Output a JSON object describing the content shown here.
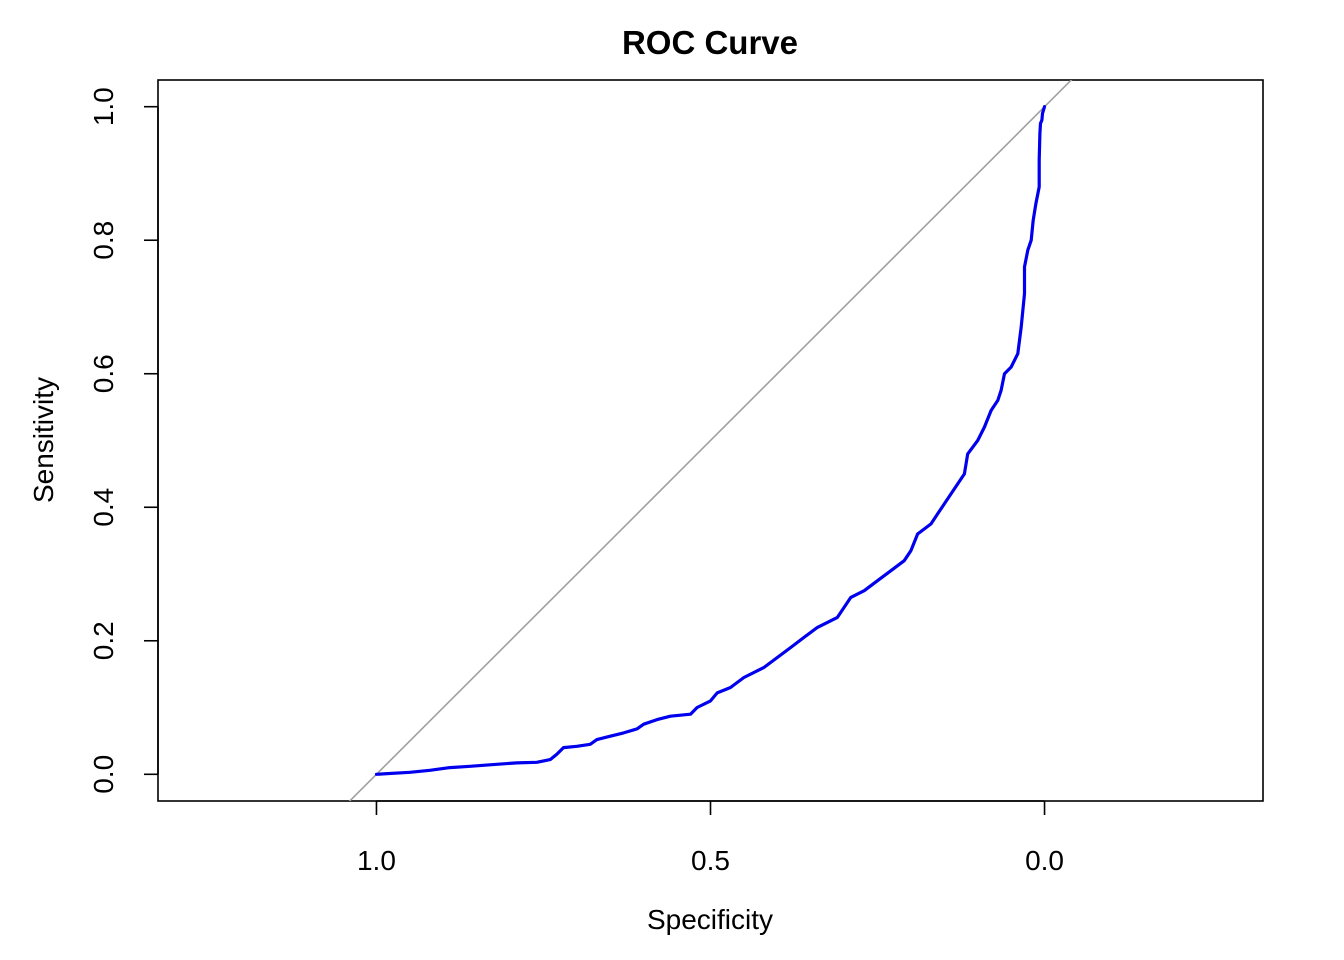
{
  "chart_data": {
    "type": "line",
    "title": "ROC Curve",
    "xlabel": "Specificity",
    "ylabel": "Sensitivity",
    "x_reversed": true,
    "xlim": [
      1.327,
      -0.327
    ],
    "ylim": [
      -0.04,
      1.04
    ],
    "x_ticks": [
      {
        "value": 1.0,
        "label": "1.0"
      },
      {
        "value": 0.5,
        "label": "0.5"
      },
      {
        "value": 0.0,
        "label": "0.0"
      }
    ],
    "y_ticks": [
      {
        "value": 0.0,
        "label": "0.0"
      },
      {
        "value": 0.2,
        "label": "0.2"
      },
      {
        "value": 0.4,
        "label": "0.4"
      },
      {
        "value": 0.6,
        "label": "0.6"
      },
      {
        "value": 0.8,
        "label": "0.8"
      },
      {
        "value": 1.0,
        "label": "1.0"
      }
    ],
    "grid": false,
    "reference_line": {
      "color": "#a0a0a0",
      "from": [
        1,
        0
      ],
      "to": [
        0,
        1
      ]
    },
    "series": [
      {
        "color": "#0000ee",
        "points": [
          [
            1.0,
            0.0
          ],
          [
            0.95,
            0.003
          ],
          [
            0.92,
            0.006
          ],
          [
            0.89,
            0.01
          ],
          [
            0.86,
            0.012
          ],
          [
            0.82,
            0.015
          ],
          [
            0.79,
            0.017
          ],
          [
            0.76,
            0.018
          ],
          [
            0.74,
            0.022
          ],
          [
            0.73,
            0.03
          ],
          [
            0.72,
            0.04
          ],
          [
            0.7,
            0.042
          ],
          [
            0.68,
            0.045
          ],
          [
            0.67,
            0.052
          ],
          [
            0.65,
            0.057
          ],
          [
            0.63,
            0.062
          ],
          [
            0.61,
            0.068
          ],
          [
            0.6,
            0.075
          ],
          [
            0.58,
            0.082
          ],
          [
            0.56,
            0.087
          ],
          [
            0.53,
            0.09
          ],
          [
            0.52,
            0.1
          ],
          [
            0.5,
            0.11
          ],
          [
            0.49,
            0.122
          ],
          [
            0.47,
            0.13
          ],
          [
            0.45,
            0.145
          ],
          [
            0.42,
            0.16
          ],
          [
            0.4,
            0.175
          ],
          [
            0.38,
            0.19
          ],
          [
            0.36,
            0.205
          ],
          [
            0.34,
            0.22
          ],
          [
            0.31,
            0.235
          ],
          [
            0.3,
            0.25
          ],
          [
            0.29,
            0.265
          ],
          [
            0.27,
            0.275
          ],
          [
            0.25,
            0.29
          ],
          [
            0.23,
            0.305
          ],
          [
            0.21,
            0.32
          ],
          [
            0.2,
            0.335
          ],
          [
            0.19,
            0.36
          ],
          [
            0.17,
            0.375
          ],
          [
            0.16,
            0.39
          ],
          [
            0.15,
            0.405
          ],
          [
            0.14,
            0.42
          ],
          [
            0.13,
            0.435
          ],
          [
            0.12,
            0.45
          ],
          [
            0.115,
            0.48
          ],
          [
            0.1,
            0.5
          ],
          [
            0.09,
            0.52
          ],
          [
            0.08,
            0.545
          ],
          [
            0.07,
            0.56
          ],
          [
            0.065,
            0.575
          ],
          [
            0.06,
            0.6
          ],
          [
            0.05,
            0.61
          ],
          [
            0.04,
            0.63
          ],
          [
            0.035,
            0.67
          ],
          [
            0.03,
            0.72
          ],
          [
            0.03,
            0.76
          ],
          [
            0.025,
            0.785
          ],
          [
            0.02,
            0.8
          ],
          [
            0.017,
            0.83
          ],
          [
            0.013,
            0.855
          ],
          [
            0.01,
            0.87
          ],
          [
            0.008,
            0.88
          ],
          [
            0.008,
            0.92
          ],
          [
            0.007,
            0.96
          ],
          [
            0.006,
            0.975
          ],
          [
            0.004,
            0.98
          ],
          [
            0.003,
            0.99
          ],
          [
            0.0,
            1.0
          ]
        ]
      }
    ]
  }
}
